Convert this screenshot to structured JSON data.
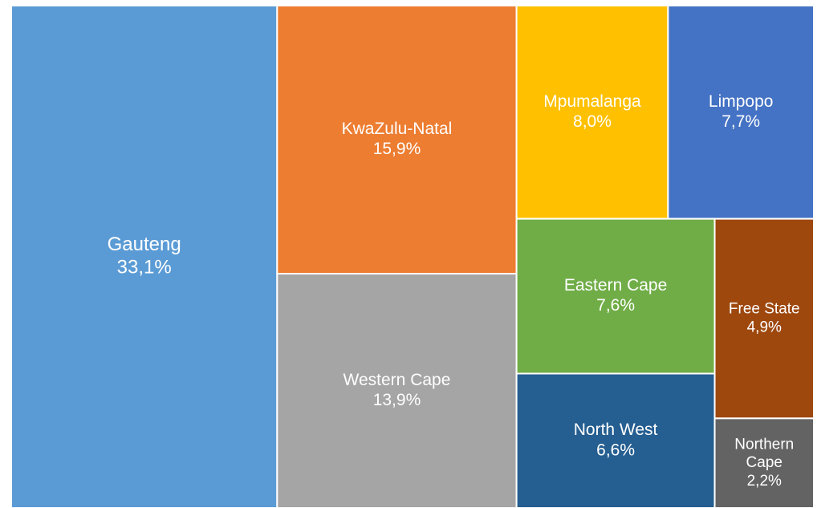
{
  "chart_data": {
    "type": "treemap",
    "categories": [
      "Gauteng",
      "KwaZulu-Natal",
      "Western Cape",
      "Mpumalanga",
      "Limpopo",
      "Eastern Cape",
      "North West",
      "Free State",
      "Northern Cape"
    ],
    "values": [
      33.1,
      15.9,
      13.9,
      8.0,
      7.7,
      7.6,
      6.6,
      4.9,
      2.2
    ],
    "value_labels": [
      "33,1%",
      "15,9%",
      "13,9%",
      "8,0%",
      "7,7%",
      "7,6%",
      "6,6%",
      "4,9%",
      "2,2%"
    ],
    "colors": [
      "#5b9bd5",
      "#ed7d31",
      "#a5a5a5",
      "#ffc000",
      "#4472c4",
      "#70ad47",
      "#255e91",
      "#9e480e",
      "#636363"
    ]
  }
}
